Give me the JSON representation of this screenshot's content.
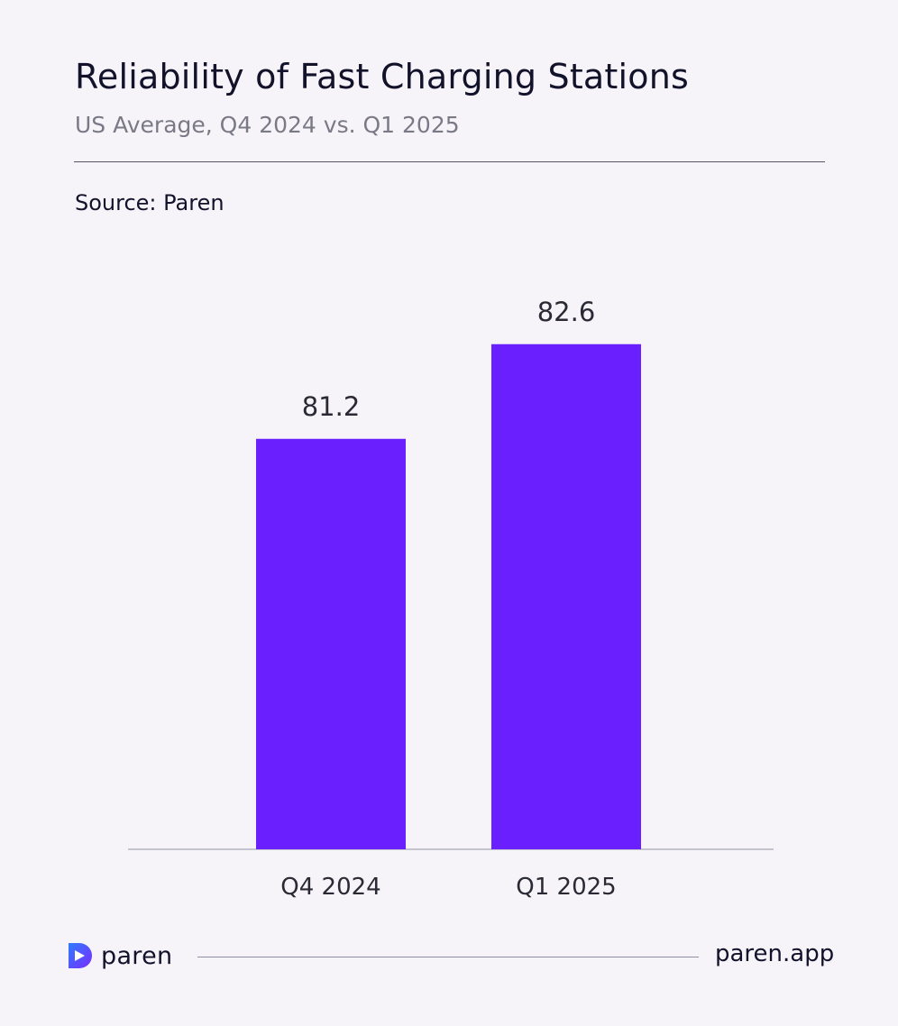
{
  "header": {
    "title": "Reliability of Fast Charging Stations",
    "subtitle": "US Average, Q4 2024 vs. Q1 2025",
    "source": "Source: Paren"
  },
  "chart_data": {
    "type": "bar",
    "categories": [
      "Q4 2024",
      "Q1 2025"
    ],
    "values": [
      81.2,
      82.6
    ],
    "data_labels": [
      "81.2",
      "82.6"
    ],
    "title": "Reliability of Fast Charging Stations",
    "subtitle": "US Average, Q4 2024 vs. Q1 2025",
    "xlabel": "",
    "ylabel": "",
    "ylim": [
      0,
      100
    ],
    "grid": false,
    "legend": "none",
    "bar_color": "#6a1fff"
  },
  "footer": {
    "brand": "paren",
    "logo_icon": "paren-logo-icon",
    "url": "paren.app"
  },
  "colors": {
    "background": "#f7f4f9",
    "accent": "#6a1fff",
    "text": "#12122b",
    "muted": "#7a7a86"
  }
}
